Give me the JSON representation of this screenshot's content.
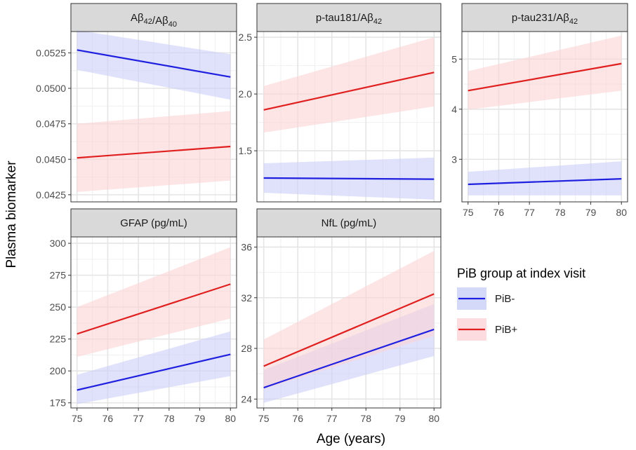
{
  "chart_data": {
    "type": "line",
    "title": "",
    "xlabel": "Age (years)",
    "ylabel": "Plasma biomarker",
    "x": [
      75,
      80
    ],
    "xlim": [
      74.8,
      80.2
    ],
    "x_ticks": [
      "75",
      "76",
      "77",
      "78",
      "79",
      "80"
    ],
    "legend": {
      "title": "PiB group at index visit",
      "position": "right",
      "entries": [
        {
          "name": "PiB-",
          "color": "#1f1fe0",
          "fill": "#c9cff7"
        },
        {
          "name": "PiB+",
          "color": "#e01f1f",
          "fill": "#fbd3d6"
        }
      ]
    },
    "panels": [
      {
        "strip": "Aβ42/Aβ40",
        "ylim": [
          0.042,
          0.054
        ],
        "y_ticks": [
          0.0425,
          0.045,
          0.0475,
          0.05,
          0.0525
        ],
        "y_tick_labels": [
          "0.0425",
          "0.0450",
          "0.0475",
          "0.0500",
          "0.0525"
        ],
        "series": [
          {
            "name": "PiB-",
            "values": [
              0.0527,
              0.0508
            ],
            "lower": [
              0.0513,
              0.0492
            ],
            "upper": [
              0.0541,
              0.0524
            ]
          },
          {
            "name": "PiB+",
            "values": [
              0.0451,
              0.0459
            ],
            "lower": [
              0.0427,
              0.0435
            ],
            "upper": [
              0.0475,
              0.0484
            ]
          }
        ]
      },
      {
        "strip": "p-tau181/Aβ42",
        "ylim": [
          1.05,
          2.55
        ],
        "y_ticks": [
          1.5,
          2.0,
          2.5
        ],
        "y_tick_labels": [
          "1.5",
          "2.0",
          "2.5"
        ],
        "series": [
          {
            "name": "PiB-",
            "values": [
              1.26,
              1.25
            ],
            "lower": [
              1.13,
              1.07
            ],
            "upper": [
              1.39,
              1.44
            ]
          },
          {
            "name": "PiB+",
            "values": [
              1.86,
              2.19
            ],
            "lower": [
              1.66,
              1.89
            ],
            "upper": [
              2.07,
              2.5
            ]
          }
        ]
      },
      {
        "strip": "p-tau231/Aβ42",
        "ylim": [
          2.15,
          5.55
        ],
        "y_ticks": [
          3,
          4,
          5
        ],
        "y_tick_labels": [
          "3",
          "4",
          "5"
        ],
        "series": [
          {
            "name": "PiB-",
            "values": [
              2.5,
              2.61
            ],
            "lower": [
              2.28,
              2.28
            ],
            "upper": [
              2.75,
              2.96
            ]
          },
          {
            "name": "PiB+",
            "values": [
              4.37,
              4.91
            ],
            "lower": [
              3.99,
              4.37
            ],
            "upper": [
              4.76,
              5.47
            ]
          }
        ]
      },
      {
        "strip": "GFAP (pg/mL)",
        "ylim": [
          171,
          305
        ],
        "y_ticks": [
          175,
          200,
          225,
          250,
          275,
          300
        ],
        "y_tick_labels": [
          "175",
          "200",
          "225",
          "250",
          "275",
          "300"
        ],
        "series": [
          {
            "name": "PiB-",
            "values": [
              185,
              213
            ],
            "lower": [
              174,
              196
            ],
            "upper": [
              197,
              231
            ]
          },
          {
            "name": "PiB+",
            "values": [
              229,
              268
            ],
            "lower": [
              211,
              241
            ],
            "upper": [
              250,
              297
            ]
          }
        ]
      },
      {
        "strip": "NfL (pg/mL)",
        "ylim": [
          23.3,
          36.8
        ],
        "y_ticks": [
          24,
          28,
          32,
          36
        ],
        "y_tick_labels": [
          "24",
          "28",
          "32",
          "36"
        ],
        "series": [
          {
            "name": "PiB-",
            "values": [
              24.9,
              29.5
            ],
            "lower": [
              23.7,
              27.4
            ],
            "upper": [
              26.3,
              31.5
            ]
          },
          {
            "name": "PiB+",
            "values": [
              26.6,
              32.3
            ],
            "lower": [
              24.8,
              29.0
            ],
            "upper": [
              28.7,
              35.7
            ]
          }
        ]
      }
    ]
  }
}
